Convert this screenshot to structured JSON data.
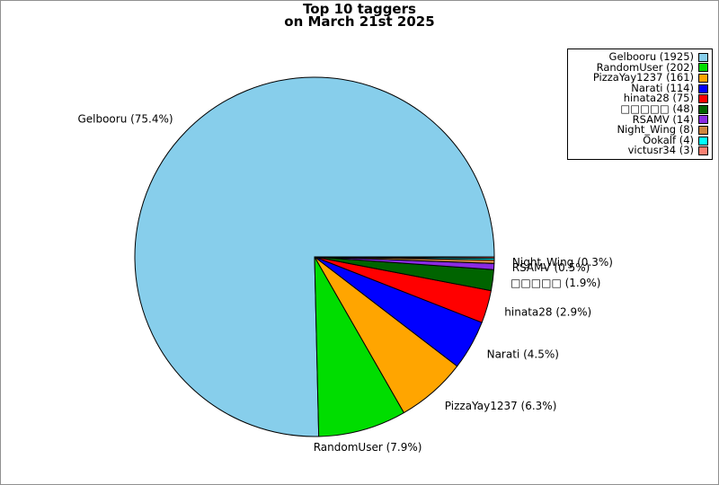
{
  "figure": {
    "background": "#ffffff",
    "border_color": "#909090"
  },
  "chart_data": {
    "type": "pie",
    "title_line1": "Top 10 taggers",
    "title_line2": "on March 21st 2025",
    "legend_position": "upper right",
    "start_angle_deg": 0,
    "counterclockwise": true,
    "wedge_edge_color": "#000000",
    "slices": [
      {
        "name": "Gelbooru",
        "count": 1925,
        "color": "#87CEEB",
        "legend_label": "Gelbooru (1925)",
        "pie_label": "Gelbooru (75.4%)"
      },
      {
        "name": "RandomUser",
        "count": 202,
        "color": "#00DD00",
        "legend_label": "RandomUser (202)",
        "pie_label": "RandomUser (7.9%)"
      },
      {
        "name": "PizzaYay1237",
        "count": 161,
        "color": "#FFA500",
        "legend_label": "PizzaYay1237 (161)",
        "pie_label": "PizzaYay1237 (6.3%)"
      },
      {
        "name": "Narati",
        "count": 114,
        "color": "#0000FF",
        "legend_label": "Narati (114)",
        "pie_label": "Narati (4.5%)"
      },
      {
        "name": "hinata28",
        "count": 75,
        "color": "#FF0000",
        "legend_label": "hinata28 (75)",
        "pie_label": "hinata28 (2.9%)"
      },
      {
        "name": "unknown-glyph-user",
        "count": 48,
        "color": "#006400",
        "legend_label": "□□□□□ (48)",
        "pie_label": "□□□□□ (1.9%)"
      },
      {
        "name": "RSAMV",
        "count": 14,
        "color": "#8A2BE2",
        "legend_label": "RSAMV (14)",
        "pie_label": "RSAMV (0.5%)"
      },
      {
        "name": "Night_Wing",
        "count": 8,
        "color": "#CD853F",
        "legend_label": "Night_Wing (8)",
        "pie_label": "Night_Wing (0.3%)"
      },
      {
        "name": "Ookalf",
        "count": 4,
        "color": "#00FFFF",
        "legend_label": "Ookalf (4)",
        "pie_label": null
      },
      {
        "name": "victusr34",
        "count": 3,
        "color": "#FA8072",
        "legend_label": "victusr34 (3)",
        "pie_label": null
      }
    ]
  }
}
